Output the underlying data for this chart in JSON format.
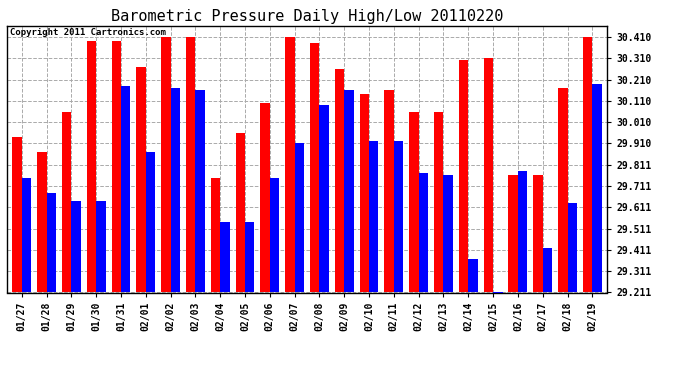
{
  "title": "Barometric Pressure Daily High/Low 20110220",
  "copyright_text": "Copyright 2011 Cartronics.com",
  "dates": [
    "01/27",
    "01/28",
    "01/29",
    "01/30",
    "01/31",
    "02/01",
    "02/02",
    "02/03",
    "02/04",
    "02/05",
    "02/06",
    "02/07",
    "02/08",
    "02/09",
    "02/10",
    "02/11",
    "02/12",
    "02/13",
    "02/14",
    "02/15",
    "02/16",
    "02/17",
    "02/18",
    "02/19"
  ],
  "highs": [
    29.94,
    29.87,
    30.06,
    30.39,
    30.39,
    30.27,
    30.41,
    30.41,
    29.75,
    29.96,
    30.1,
    30.41,
    30.38,
    30.26,
    30.14,
    30.16,
    30.06,
    30.06,
    30.3,
    30.31,
    29.76,
    29.76,
    30.17,
    30.41
  ],
  "lows": [
    29.75,
    29.68,
    29.64,
    29.64,
    30.18,
    29.87,
    30.17,
    30.16,
    29.54,
    29.54,
    29.75,
    29.91,
    30.09,
    30.16,
    29.92,
    29.92,
    29.77,
    29.76,
    29.37,
    29.05,
    29.78,
    29.42,
    29.63,
    30.19
  ],
  "high_color": "#FF0000",
  "low_color": "#0000FF",
  "background_color": "#FFFFFF",
  "grid_color": "#AAAAAA",
  "ylim_min": 29.211,
  "ylim_max": 30.46,
  "ytick_values": [
    29.211,
    29.311,
    29.411,
    29.511,
    29.611,
    29.711,
    29.811,
    29.91,
    30.01,
    30.11,
    30.21,
    30.31,
    30.41
  ],
  "ytick_labels": [
    "29.211",
    "29.311",
    "29.411",
    "29.511",
    "29.611",
    "29.711",
    "29.811",
    "29.910",
    "30.010",
    "30.110",
    "30.210",
    "30.310",
    "30.410"
  ],
  "title_fontsize": 11,
  "tick_fontsize": 7,
  "bar_width": 0.38
}
